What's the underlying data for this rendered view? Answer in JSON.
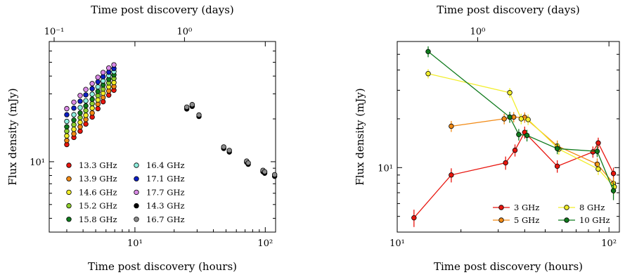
{
  "chart_data": [
    {
      "type": "scatter",
      "xscale": "log",
      "yscale": "log",
      "xlabel": "Time post discovery (hours)",
      "ylabel": "Flux density (mJy)",
      "top_xlabel": "Time post discovery (days)",
      "xlim": [
        2.2,
        120
      ],
      "ylim": [
        3.2,
        70
      ],
      "xticks": [
        {
          "value": 10,
          "label": "10¹"
        },
        {
          "value": 100,
          "label": "10²"
        }
      ],
      "yticks": [
        {
          "value": 10,
          "label": "10¹"
        }
      ],
      "top_xticks": [
        {
          "value": 0.1,
          "label": "10⁻¹"
        },
        {
          "value": 1,
          "label": "10⁰"
        }
      ],
      "legend": {
        "placement": "lower-left",
        "columns": 2
      },
      "series": [
        {
          "name": "13.3 GHz",
          "color": "#e8150e",
          "x": [
            3.0,
            3.4,
            3.8,
            4.2,
            4.7,
            5.2,
            5.7,
            6.3,
            6.9
          ],
          "y": [
            13.2,
            14.8,
            16.4,
            18.4,
            20.6,
            23.6,
            26.4,
            29.4,
            31.8
          ]
        },
        {
          "name": "13.9 GHz",
          "color": "#f28a15",
          "x": [
            3.0,
            3.4,
            3.8,
            4.2,
            4.7,
            5.2,
            5.7,
            6.3,
            6.9
          ],
          "y": [
            14.1,
            15.7,
            17.6,
            19.8,
            22.0,
            25.4,
            28.3,
            31.4,
            33.8
          ]
        },
        {
          "name": "14.6 GHz",
          "color": "#f2ee2a",
          "x": [
            3.0,
            3.4,
            3.8,
            4.2,
            4.7,
            5.2,
            5.7,
            6.3,
            6.9
          ],
          "y": [
            15.2,
            16.9,
            18.9,
            21.2,
            23.8,
            27.2,
            30.3,
            33.6,
            36.0
          ]
        },
        {
          "name": "15.2 GHz",
          "color": "#8ecf2e",
          "x": [
            3.0,
            3.4,
            3.8,
            4.2,
            4.7,
            5.2,
            5.7,
            6.3,
            6.9
          ],
          "y": [
            16.4,
            18.2,
            20.4,
            22.9,
            25.6,
            29.2,
            32.4,
            35.8,
            38.5
          ]
        },
        {
          "name": "15.8 GHz",
          "color": "#0f7a1c",
          "x": [
            3.0,
            3.4,
            3.8,
            4.2,
            4.7,
            5.2,
            5.7,
            6.3,
            6.9
          ],
          "y": [
            17.6,
            19.6,
            22.0,
            24.7,
            27.5,
            31.2,
            34.6,
            38.0,
            40.8
          ]
        },
        {
          "name": "16.4 GHz",
          "color": "#8ff0df",
          "x": [
            3.0,
            3.4,
            3.8,
            4.2,
            4.7,
            5.2,
            5.7,
            6.3,
            6.9
          ],
          "y": [
            19.2,
            21.4,
            24.0,
            26.8,
            29.8,
            33.6,
            37.0,
            40.4,
            43.0
          ]
        },
        {
          "name": "17.1 GHz",
          "color": "#0b1ec4",
          "x": [
            3.0,
            3.4,
            3.8,
            4.2,
            4.7,
            5.2,
            5.7,
            6.3,
            6.9
          ],
          "y": [
            21.4,
            23.8,
            26.6,
            29.5,
            32.6,
            36.4,
            39.6,
            42.6,
            45.2
          ]
        },
        {
          "name": "17.7 GHz",
          "color": "#d98ae6",
          "x": [
            3.0,
            3.4,
            3.8,
            4.2,
            4.7,
            5.2,
            5.7,
            6.3,
            6.9
          ],
          "y": [
            23.6,
            26.2,
            29.2,
            32.2,
            35.4,
            39.2,
            42.4,
            45.6,
            48.0
          ]
        },
        {
          "name": "14.3 GHz",
          "color": "#000000",
          "x": [
            25.0,
            27.5,
            31.0,
            48.0,
            53.0,
            72.0,
            74.0,
            96.0,
            99.0,
            118.0
          ],
          "y": [
            23.5,
            24.5,
            20.8,
            12.4,
            11.7,
            9.9,
            9.6,
            8.5,
            8.3,
            7.9
          ]
        },
        {
          "name": "16.7 GHz",
          "color": "#8c8c8c",
          "x": [
            25.0,
            27.5,
            31.0,
            48.0,
            53.0,
            72.0,
            74.0,
            96.0,
            99.0,
            118.0
          ],
          "y": [
            24.2,
            25.2,
            21.3,
            12.7,
            12.0,
            10.1,
            9.8,
            8.7,
            8.5,
            8.1
          ]
        }
      ]
    },
    {
      "type": "line",
      "xscale": "log",
      "yscale": "log",
      "xlabel": "Time post discovery (hours)",
      "ylabel": "Flux density (mJy)",
      "top_xlabel": "Time post discovery (days)",
      "xlim": [
        10,
        112
      ],
      "ylim": [
        4.0,
        60
      ],
      "xticks": [
        {
          "value": 10,
          "label": "10¹"
        },
        {
          "value": 100,
          "label": "10²"
        }
      ],
      "yticks": [
        {
          "value": 10,
          "label": "10¹"
        }
      ],
      "top_xticks": [
        {
          "value": 24,
          "label": "10⁰"
        }
      ],
      "legend": {
        "placement": "lower-right",
        "columns": 2
      },
      "series": [
        {
          "name": "3 GHz",
          "color": "#e8150e",
          "x": [
            12.0,
            18.0,
            32.5,
            36.0,
            40.0,
            57.0,
            84.0,
            89.0,
            105.0
          ],
          "y": [
            4.9,
            9.0,
            10.7,
            12.8,
            16.5,
            10.2,
            12.5,
            14.2,
            9.2
          ],
          "err": [
            0.6,
            0.9,
            1.0,
            1.1,
            1.4,
            0.9,
            1.0,
            1.1,
            0.8
          ]
        },
        {
          "name": "5 GHz",
          "color": "#f28a15",
          "x": [
            18.0,
            32.0,
            35.5,
            40.0,
            57.0,
            88.0,
            105.0
          ],
          "y": [
            18.0,
            20.0,
            20.5,
            20.4,
            13.6,
            10.5,
            8.0
          ],
          "err": [
            1.4,
            1.5,
            1.5,
            1.5,
            1.1,
            0.9,
            0.7
          ]
        },
        {
          "name": "8 GHz",
          "color": "#f2ee2a",
          "x": [
            14.0,
            34.0,
            38.5,
            41.5,
            58.0,
            89.0,
            106.0
          ],
          "y": [
            38.0,
            29.0,
            20.0,
            19.8,
            13.0,
            9.8,
            7.6
          ],
          "err": [
            2.5,
            2.0,
            1.5,
            1.5,
            1.0,
            0.8,
            0.7
          ]
        },
        {
          "name": "10 GHz",
          "color": "#0f7a1c",
          "x": [
            14.0,
            34.0,
            37.5,
            41.0,
            57.0,
            88.0,
            105.0
          ],
          "y": [
            52.0,
            20.5,
            16.0,
            15.8,
            13.1,
            12.6,
            7.2
          ],
          "err": [
            4.0,
            1.6,
            1.3,
            1.3,
            1.0,
            1.0,
            0.9
          ]
        }
      ]
    }
  ]
}
